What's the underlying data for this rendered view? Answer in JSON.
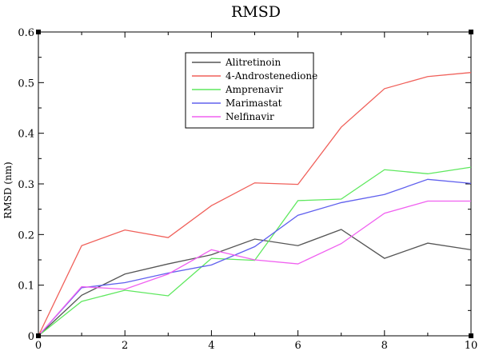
{
  "chart_data": {
    "type": "line",
    "title": "RMSD",
    "xlabel": "",
    "ylabel": "RMSD (nm)",
    "xlim": [
      0,
      10
    ],
    "ylim": [
      0,
      0.6
    ],
    "x_ticks": [
      0,
      2,
      4,
      6,
      8,
      10
    ],
    "y_ticks": [
      0,
      0.1,
      0.2,
      0.3,
      0.4,
      0.5,
      0.6
    ],
    "grid": false,
    "legend_position": "top-center",
    "x": [
      0,
      1,
      2,
      3,
      4,
      5,
      6,
      7,
      8,
      9,
      10
    ],
    "series": [
      {
        "name": "Alitretinoin",
        "color": "#555555",
        "values": [
          0,
          0.08,
          0.122,
          0.142,
          0.16,
          0.191,
          0.178,
          0.21,
          0.153,
          0.183,
          0.17
        ]
      },
      {
        "name": "4-Androstenedione",
        "color": "#f0605a",
        "values": [
          0,
          0.178,
          0.209,
          0.194,
          0.257,
          0.302,
          0.299,
          0.412,
          0.488,
          0.512,
          0.52
        ]
      },
      {
        "name": "Amprenavir",
        "color": "#5ee85e",
        "values": [
          0,
          0.068,
          0.09,
          0.079,
          0.153,
          0.149,
          0.267,
          0.27,
          0.328,
          0.32,
          0.333
        ]
      },
      {
        "name": "Marimastat",
        "color": "#6060ee",
        "values": [
          0,
          0.095,
          0.105,
          0.124,
          0.14,
          0.176,
          0.238,
          0.263,
          0.279,
          0.309,
          0.301
        ]
      },
      {
        "name": "Nelfinavir",
        "color": "#f060f0",
        "values": [
          0,
          0.097,
          0.092,
          0.122,
          0.17,
          0.15,
          0.142,
          0.182,
          0.242,
          0.266,
          0.266
        ]
      }
    ]
  }
}
